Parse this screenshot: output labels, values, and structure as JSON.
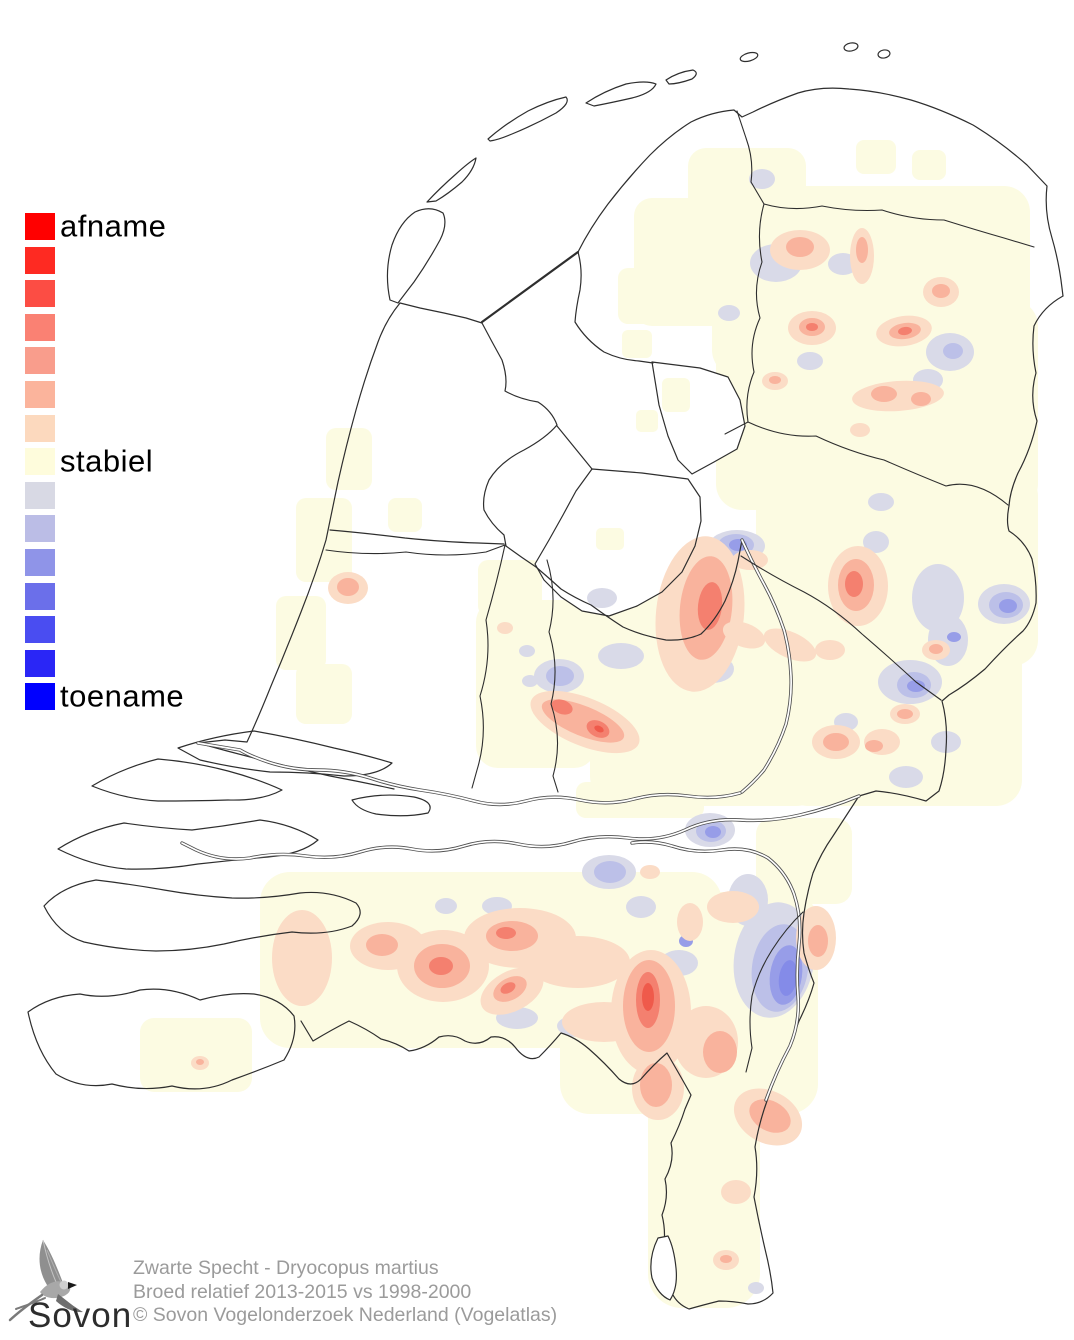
{
  "legend": {
    "entries": [
      {
        "color": "#ff0000",
        "label": "afname"
      },
      {
        "color": "#fe2a22"
      },
      {
        "color": "#fc4d44"
      },
      {
        "color": "#fa8173"
      },
      {
        "color": "#f99d8c"
      },
      {
        "color": "#fbb49c"
      },
      {
        "color": "#fcd9be"
      },
      {
        "color": "#fefcdc",
        "label": "stabiel"
      },
      {
        "color": "#d8d9e4"
      },
      {
        "color": "#bbbde6"
      },
      {
        "color": "#8f94e8"
      },
      {
        "color": "#6b6fea"
      },
      {
        "color": "#4a4df1"
      },
      {
        "color": "#2a26f6"
      },
      {
        "color": "#0000ff",
        "label": "toename"
      }
    ]
  },
  "caption": {
    "species": "Zwarte Specht - Dryocopus martius",
    "period": "Broed relatief 2013-2015 vs 1998-2000",
    "copyright": "© Sovon Vogelonderzoek Nederland (Vogelatlas)"
  },
  "logo": {
    "text": "Sovon"
  },
  "map": {
    "palette": {
      "stable": "#fcfbe2",
      "pink": "#fbdcc6",
      "salmon": "#f9b39d",
      "red": "#f4806f",
      "red-deep": "#ef5a4b",
      "lav": "#d9dae8",
      "lav-mid": "#bcc0e8",
      "blue": "#979de8",
      "blue-deep": "#848be8",
      "outline": "#2e2e2e",
      "river": "#4f4f4f",
      "caption-gray": "#9b9b9b"
    }
  }
}
